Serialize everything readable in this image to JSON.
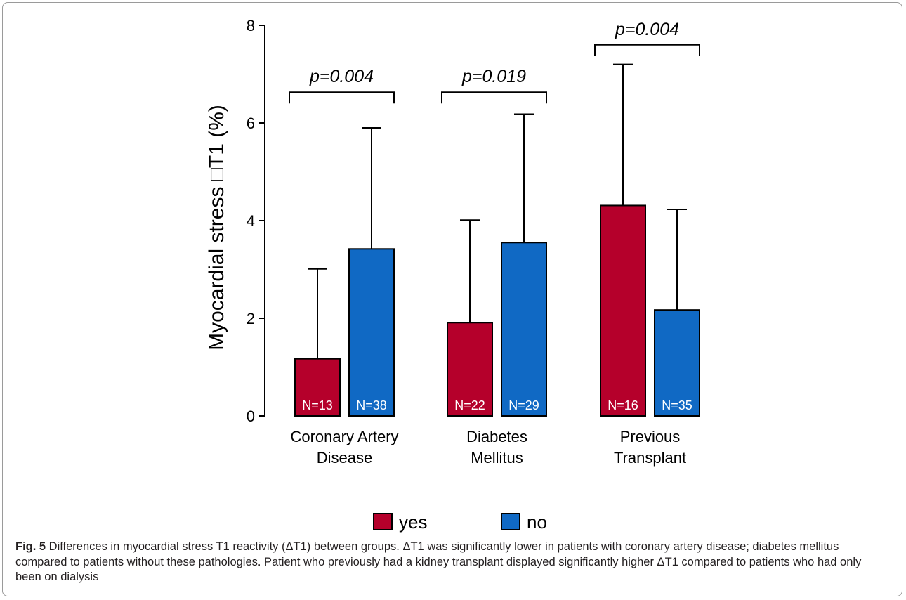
{
  "chart_data": {
    "type": "bar",
    "ylabel": "Myocardial stress □T1 (%)",
    "ylim": [
      0,
      8
    ],
    "yticks": [
      0,
      2,
      4,
      6,
      8
    ],
    "categories": [
      "Coronary Artery Disease",
      "Diabetes Mellitus",
      "Previous Transplant"
    ],
    "category_label_lines": [
      [
        "Coronary Artery",
        "Disease"
      ],
      [
        "Diabetes",
        "Mellitus"
      ],
      [
        "Previous",
        "Transplant"
      ]
    ],
    "series": [
      {
        "name": "yes",
        "color": "#b5002b",
        "values": [
          1.17,
          1.91,
          4.31
        ],
        "error_upper": [
          3.01,
          4.01,
          7.2
        ],
        "n_labels": [
          "N=13",
          "N=22",
          "N=16"
        ]
      },
      {
        "name": "no",
        "color": "#1069c4",
        "values": [
          3.42,
          3.55,
          2.17
        ],
        "error_upper": [
          5.9,
          6.18,
          4.23
        ],
        "n_labels": [
          "N=38",
          "N=29",
          "N=35"
        ]
      }
    ],
    "significance": [
      {
        "label": "p=0.004",
        "bracket_height": 6.63
      },
      {
        "label": "p=0.019",
        "bracket_height": 6.63
      },
      {
        "label": "p=0.004",
        "bracket_height": 7.6
      }
    ],
    "legend": [
      "yes",
      "no"
    ],
    "legend_position": "bottom",
    "grid": false
  },
  "caption": {
    "fig_label": "Fig. 5",
    "text": " Differences in myocardial stress T1 reactivity (ΔT1) between groups. ΔT1 was significantly lower in patients with coronary artery disease; diabetes mellitus compared to patients without these pathologies. Patient who previously had a kidney transplant displayed significantly higher ΔT1 compared to patients who had only been on dialysis"
  }
}
